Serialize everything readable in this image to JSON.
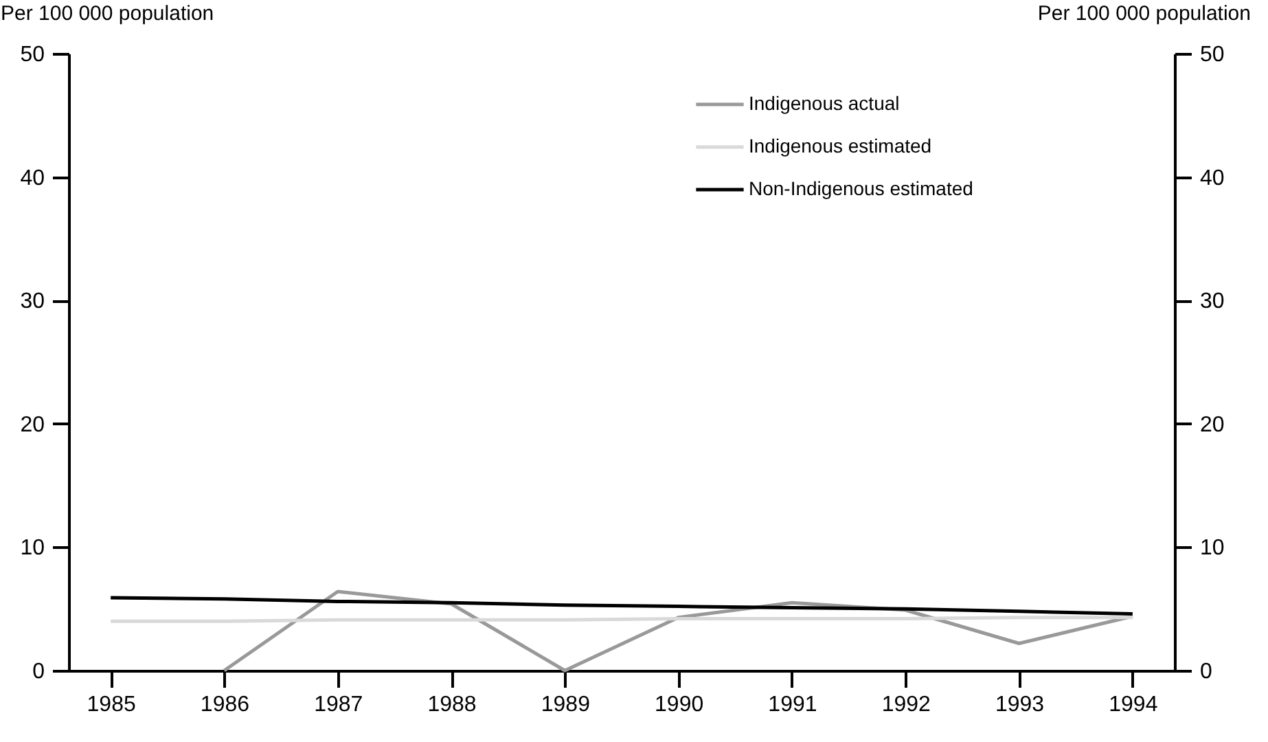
{
  "chart_data": {
    "type": "line",
    "ylabel": "Per 100 000 population",
    "y2label": "Per 100 000 population",
    "categories": [
      "1985",
      "1986",
      "1987",
      "1988",
      "1989",
      "1990",
      "1991",
      "1992",
      "1993",
      "1994"
    ],
    "series": [
      {
        "name": "Indigenous actual",
        "color": "#999999",
        "values": [
          null,
          0,
          6.4,
          5.4,
          0,
          4.3,
          5.5,
          4.9,
          2.2,
          4.4
        ]
      },
      {
        "name": "Indigenous estimated",
        "color": "#d9d9d9",
        "values": [
          4.0,
          4.0,
          4.1,
          4.1,
          4.1,
          4.2,
          4.2,
          4.2,
          4.3,
          4.3
        ]
      },
      {
        "name": "Non-Indigenous estimated",
        "color": "#000000",
        "values": [
          5.9,
          5.8,
          5.6,
          5.5,
          5.3,
          5.2,
          5.1,
          5.0,
          4.8,
          4.6
        ]
      }
    ],
    "ylim": [
      0,
      50
    ],
    "yticks": [
      0,
      10,
      20,
      30,
      40,
      50
    ],
    "y2lim": [
      0,
      50
    ],
    "y2ticks": [
      0,
      10,
      20,
      30,
      40,
      50
    ],
    "grid": false,
    "legend": "top right",
    "line_style": "solid",
    "marker": "none"
  }
}
